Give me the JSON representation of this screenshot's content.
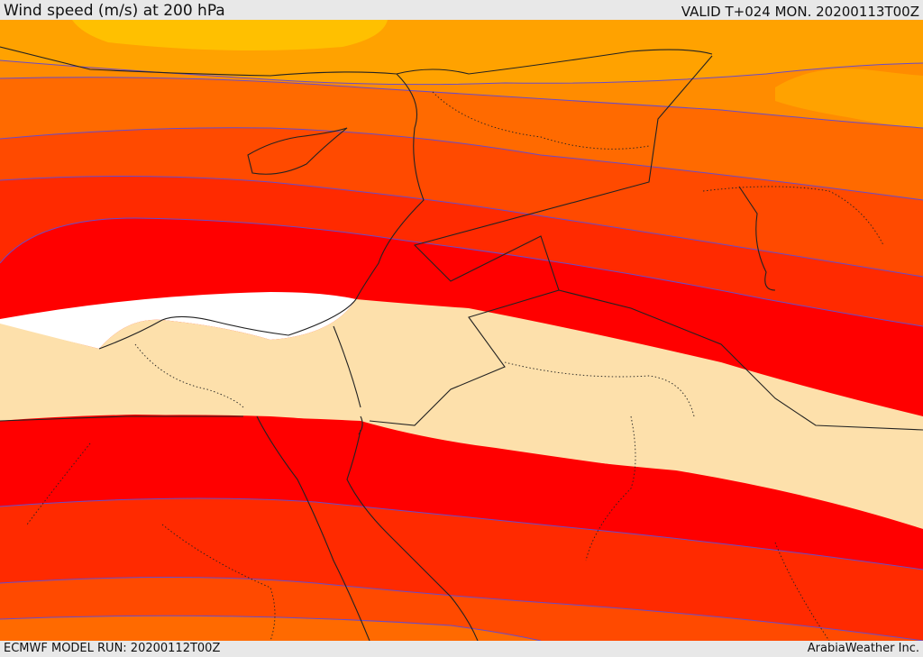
{
  "header": {
    "title": "Wind speed (m/s) at 200 hPa",
    "valid": "VALID T+024 MON. 20200113T00Z"
  },
  "footer": {
    "model_run": "ECMWF MODEL RUN: 20200112T00Z",
    "credit": "ArabiaWeather Inc."
  },
  "colors": {
    "band_35": "#ffc000",
    "band_40": "#ffa200",
    "band_45": "#ff8c00",
    "band_50": "#ff6a00",
    "band_55": "#ff4a00",
    "band_60": "#ff2a00",
    "band_65": "#ff0000",
    "calm": "#ffffff",
    "low": "#fde0ab",
    "contour": "#6a4bc8",
    "land": "#222222"
  }
}
